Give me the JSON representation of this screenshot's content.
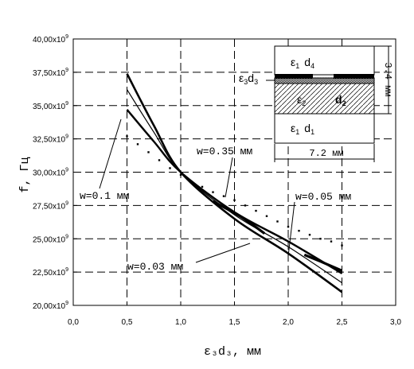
{
  "chart_data": {
    "type": "line",
    "xlabel": "ε₃d₃,  мм",
    "ylabel": "f,  Гц",
    "xlim": [
      0,
      3
    ],
    "ylim": [
      20000000000,
      40000000000
    ],
    "x_ticks": [
      0,
      0.5,
      1,
      1.5,
      2,
      2.5,
      3
    ],
    "x_tick_labels": [
      "0,0",
      "0,5",
      "1,0",
      "1,5",
      "2,0",
      "2,5",
      "3,0"
    ],
    "y_ticks": [
      20000000000,
      22500000000,
      25000000000,
      27500000000,
      30000000000,
      32500000000,
      35000000000,
      37500000000,
      40000000000
    ],
    "y_tick_labels": [
      "20,00x10",
      "22,50x10",
      "25,00x10",
      "27,50x10",
      "30,00x10",
      "32,50x10",
      "35,00x10",
      "37,50x10",
      "40,00x10"
    ],
    "y_tick_exponent": "9",
    "grid": true,
    "series": [
      {
        "x": [
          0.5,
          0.75,
          1.0,
          1.5,
          2.0,
          2.5
        ],
        "y": [
          37400000000,
          33500000000,
          30000000000,
          26500000000,
          23900000000,
          21000000000
        ]
      },
      {
        "x": [
          0.5,
          0.75,
          1.0,
          1.5,
          2.0,
          2.5
        ],
        "y": [
          36200000000,
          33000000000,
          30000000000,
          26800000000,
          24400000000,
          21700000000
        ]
      },
      {
        "x": [
          0.5,
          0.75,
          1.0,
          1.5,
          2.0,
          2.5
        ],
        "y": [
          34700000000,
          32300000000,
          30000000000,
          27000000000,
          24800000000,
          22400000000
        ]
      },
      {
        "x": [
          1.3,
          1.55,
          1.78
        ],
        "y": [
          27800000000,
          26700000000,
          25400000000
        ]
      },
      {
        "x": [
          2.15,
          2.3,
          2.5
        ],
        "y": [
          23800000000,
          23300000000,
          22600000000
        ]
      },
      {
        "x": [
          0.5,
          0.6,
          0.7,
          0.8,
          0.9,
          1.0,
          1.1,
          1.2,
          1.3,
          1.4,
          1.5,
          1.6,
          1.7,
          1.8,
          1.9,
          2.0,
          2.1,
          2.2,
          2.3,
          2.4,
          2.5
        ],
        "y": [
          32700000000,
          32100000000,
          31500000000,
          30900000000,
          30300000000,
          29800000000,
          29300000000,
          28900000000,
          28500000000,
          28200000000,
          27900000000,
          27500000000,
          27100000000,
          26700000000,
          26300000000,
          25900000000,
          25600000000,
          25300000000,
          25000000000,
          24800000000,
          24500000000
        ]
      }
    ],
    "annotations": [
      "w=0.1 мм",
      "w=0.35 мм",
      "w=0.05 мм",
      "w=0.03 мм"
    ]
  },
  "inset": {
    "label_top": "ε",
    "label_top_sub": "1",
    "label_top_d": "d",
    "label_top_d_sub": "4",
    "label_left": "ε",
    "label_left_sub": "3",
    "label_left_d": "d",
    "label_left_d_sub": "3",
    "label_mid": "ε",
    "label_mid_sub": "2",
    "label_mid_d": "d",
    "label_mid_d_sub": "2",
    "label_bot": "ε",
    "label_bot_sub": "1",
    "label_bot_d": "d",
    "label_bot_d_sub": "1",
    "width_label": "7.2 мм",
    "height_label": "3.4 мм"
  }
}
